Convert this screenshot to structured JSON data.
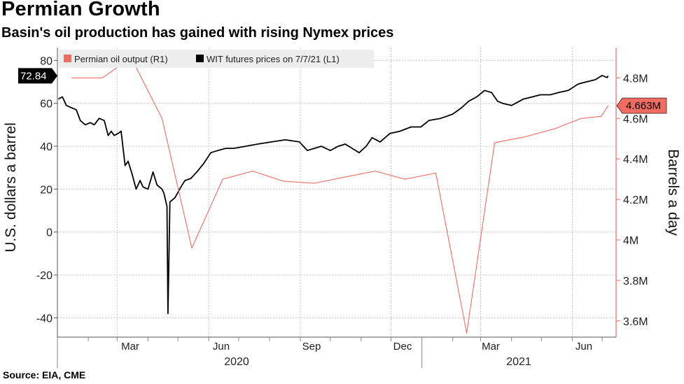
{
  "header": {
    "title": "Permian Growth",
    "subtitle": "Basin's oil production has gained with rising Nymex prices"
  },
  "footer": {
    "source": "Source: EIA, CME"
  },
  "colors": {
    "wti": "#000000",
    "permian": "#f26b60",
    "grid": "#c8c8c8",
    "legend_bg": "#ededed"
  },
  "chart_data": {
    "type": "line",
    "legend": [
      "Permian oil output (R1)",
      "WIT futures prices on 7/7/21 (L1)"
    ],
    "legend_placement": "top-left",
    "grid": true,
    "left_axis": {
      "title": "U.S. dollars a barrel",
      "ticks": [
        80,
        60,
        40,
        20,
        0,
        -20,
        -40
      ],
      "range": [
        -49,
        86
      ]
    },
    "right_axis": {
      "title": "Barrels a day",
      "ticks": [
        4.8,
        4.6,
        4.4,
        4.2,
        4.0,
        3.8,
        3.6
      ],
      "tick_labels": [
        "4.8M",
        "4.6M",
        "4.4M",
        "4.2M",
        "4M",
        "3.8M",
        "3.6M"
      ],
      "range": [
        3.52,
        4.95
      ]
    },
    "x_axis": {
      "month_labels": [
        "Mar",
        "Jun",
        "Sep",
        "Dec",
        "Mar",
        "Jun"
      ],
      "years": [
        "2020",
        "2021"
      ]
    },
    "last_values": {
      "wti": "72.84",
      "permian": "4.663M"
    },
    "series": [
      {
        "name": "WIT futures prices on 7/7/21 (L1)",
        "axis": "left",
        "x": [
          "2020-01-02",
          "2020-01-06",
          "2020-01-10",
          "2020-01-15",
          "2020-01-20",
          "2020-01-24",
          "2020-01-29",
          "2020-02-03",
          "2020-02-07",
          "2020-02-12",
          "2020-02-17",
          "2020-02-21",
          "2020-02-24",
          "2020-02-27",
          "2020-03-02",
          "2020-03-05",
          "2020-03-09",
          "2020-03-12",
          "2020-03-16",
          "2020-03-20",
          "2020-03-24",
          "2020-03-27",
          "2020-04-01",
          "2020-04-06",
          "2020-04-10",
          "2020-04-15",
          "2020-04-17",
          "2020-04-20",
          "2020-04-21",
          "2020-04-23",
          "2020-04-28",
          "2020-05-04",
          "2020-05-08",
          "2020-05-14",
          "2020-05-20",
          "2020-05-27",
          "2020-06-03",
          "2020-06-10",
          "2020-06-18",
          "2020-06-26",
          "2020-07-08",
          "2020-07-20",
          "2020-08-03",
          "2020-08-17",
          "2020-08-31",
          "2020-09-08",
          "2020-09-15",
          "2020-09-22",
          "2020-10-01",
          "2020-10-09",
          "2020-10-16",
          "2020-10-23",
          "2020-10-30",
          "2020-11-06",
          "2020-11-12",
          "2020-11-20",
          "2020-11-30",
          "2020-12-10",
          "2020-12-21",
          "2020-12-31",
          "2021-01-08",
          "2021-01-20",
          "2021-02-01",
          "2021-02-10",
          "2021-02-17",
          "2021-02-25",
          "2021-03-05",
          "2021-03-12",
          "2021-03-18",
          "2021-03-23",
          "2021-04-01",
          "2021-04-13",
          "2021-04-22",
          "2021-04-30",
          "2021-05-10",
          "2021-05-18",
          "2021-05-28",
          "2021-06-07",
          "2021-06-15",
          "2021-06-24",
          "2021-07-01",
          "2021-07-06",
          "2021-07-07"
        ],
        "values": [
          62,
          63,
          59,
          58,
          57,
          52,
          50,
          51,
          50,
          53,
          52,
          45,
          47,
          45,
          46,
          47,
          31,
          33,
          27,
          20,
          24,
          21,
          20,
          28,
          22,
          20,
          18,
          12,
          -38,
          14,
          16,
          21,
          24,
          25,
          28,
          32,
          37,
          38,
          39,
          39,
          40,
          41,
          42,
          43,
          42,
          38,
          39,
          40,
          38,
          40,
          41,
          39,
          37,
          40,
          44,
          42,
          46,
          47,
          49,
          49,
          52,
          53,
          55,
          58,
          61,
          63,
          66,
          65,
          61,
          60,
          59,
          62,
          63,
          64,
          64,
          65,
          66,
          69,
          70,
          71,
          73,
          72,
          72.84
        ]
      },
      {
        "name": "Permian oil output (R1)",
        "axis": "right",
        "x": [
          "2020-01-15",
          "2020-02-15",
          "2020-03-15",
          "2020-04-15",
          "2020-05-15",
          "2020-06-15",
          "2020-07-15",
          "2020-08-15",
          "2020-09-15",
          "2020-10-15",
          "2020-11-15",
          "2020-12-15",
          "2021-01-15",
          "2021-02-15",
          "2021-03-15",
          "2021-04-15",
          "2021-05-15",
          "2021-06-10",
          "2021-06-30",
          "2021-07-07"
        ],
        "values": [
          4.8,
          4.8,
          4.9,
          4.6,
          3.96,
          4.3,
          4.34,
          4.29,
          4.28,
          4.31,
          4.34,
          4.3,
          4.33,
          3.54,
          4.48,
          4.51,
          4.55,
          4.6,
          4.61,
          4.663
        ]
      }
    ]
  }
}
